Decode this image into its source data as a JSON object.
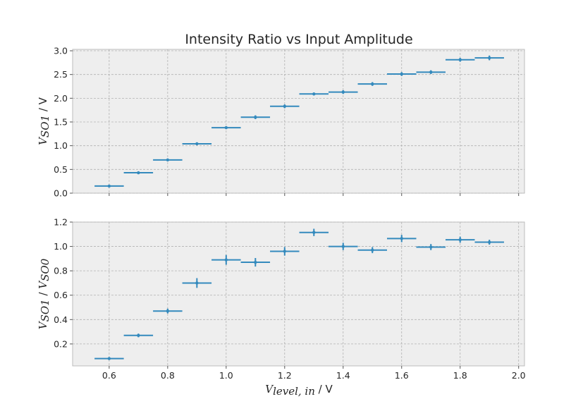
{
  "chart_data": [
    {
      "type": "scatter",
      "title": "Intensity Ratio vs Input Amplitude",
      "ylabel": {
        "symbol": "V",
        "subscript": "SO1",
        "unit": " / V"
      },
      "xlim": [
        0.475,
        2.02
      ],
      "ylim": [
        0.0,
        3.03
      ],
      "yticks": [
        0.0,
        0.5,
        1.0,
        1.5,
        2.0,
        2.5,
        3.0
      ],
      "ytick_labels": [
        "0.0",
        "0.5",
        "1.0",
        "1.5",
        "2.0",
        "2.5",
        "3.0"
      ],
      "xticks": [
        0.6,
        0.8,
        1.0,
        1.2,
        1.4,
        1.6,
        1.8,
        2.0
      ],
      "grid": true,
      "series": [
        {
          "color": "#348abd",
          "x": [
            0.6,
            0.7,
            0.8,
            0.9,
            1.0,
            1.1,
            1.2,
            1.3,
            1.4,
            1.5,
            1.6,
            1.7,
            1.8,
            1.9
          ],
          "y": [
            0.15,
            0.43,
            0.7,
            1.04,
            1.38,
            1.6,
            1.83,
            2.09,
            2.13,
            2.3,
            2.51,
            2.55,
            2.81,
            2.85
          ],
          "xerr": 0.05,
          "yerr": [
            0.02,
            0.02,
            0.02,
            0.03,
            0.03,
            0.04,
            0.04,
            0.03,
            0.04,
            0.04,
            0.04,
            0.04,
            0.04,
            0.05
          ]
        }
      ]
    },
    {
      "type": "scatter",
      "xlabel": {
        "symbol": "V",
        "subscript": "level, in",
        "unit": " / V"
      },
      "ylabel": {
        "symbol1": "V",
        "subscript1": "SO1",
        "sep": " / ",
        "symbol2": "V",
        "subscript2": "SO0"
      },
      "xlim": [
        0.475,
        2.02
      ],
      "ylim": [
        0.02,
        1.2
      ],
      "yticks": [
        0.2,
        0.4,
        0.6,
        0.8,
        1.0,
        1.2
      ],
      "ytick_labels": [
        "0.2",
        "0.4",
        "0.6",
        "0.8",
        "1.0",
        "1.2"
      ],
      "xticks": [
        0.6,
        0.8,
        1.0,
        1.2,
        1.4,
        1.6,
        1.8,
        2.0
      ],
      "xtick_labels": [
        "0.6",
        "0.8",
        "1.0",
        "1.2",
        "1.4",
        "1.6",
        "1.8",
        "2.0"
      ],
      "grid": true,
      "series": [
        {
          "color": "#348abd",
          "x": [
            0.6,
            0.7,
            0.8,
            0.9,
            1.0,
            1.1,
            1.2,
            1.3,
            1.4,
            1.5,
            1.6,
            1.7,
            1.8,
            1.9
          ],
          "y": [
            0.08,
            0.27,
            0.47,
            0.7,
            0.89,
            0.87,
            0.96,
            1.115,
            1.0,
            0.97,
            1.065,
            0.995,
            1.055,
            1.035
          ],
          "xerr": 0.05,
          "yerr": [
            0.01,
            0.015,
            0.02,
            0.04,
            0.04,
            0.035,
            0.035,
            0.03,
            0.03,
            0.025,
            0.03,
            0.025,
            0.025,
            0.02
          ]
        }
      ]
    }
  ]
}
